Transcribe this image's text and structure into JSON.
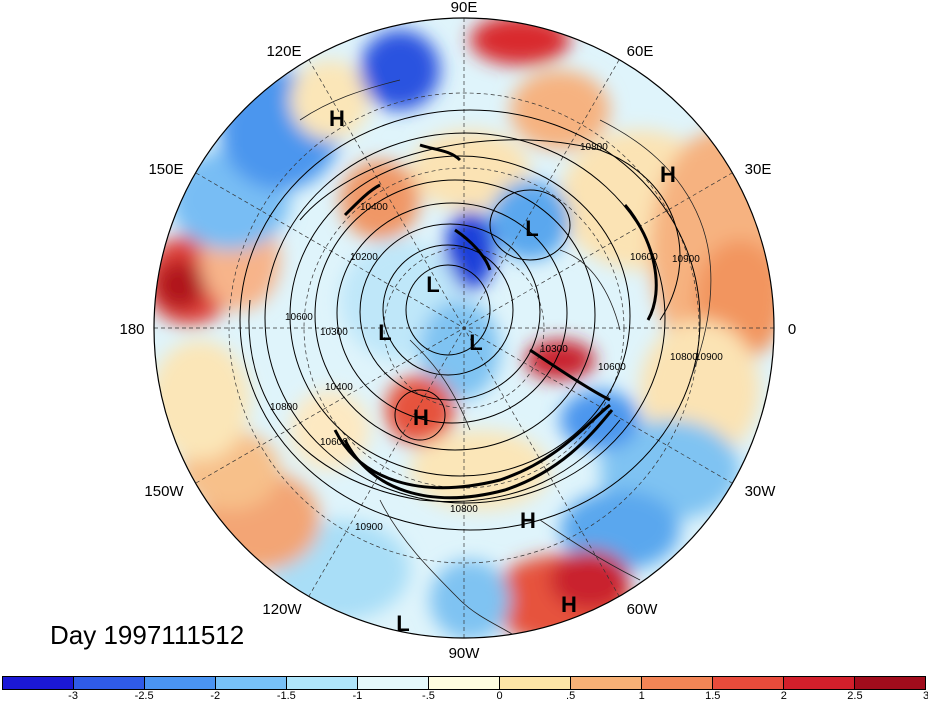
{
  "date_label": "Day 1997111512",
  "longitude_labels": {
    "top": "90E",
    "upper_left": "120E",
    "upper_right": "60E",
    "left_upper": "150E",
    "right_upper": "30E",
    "left": "180",
    "right": "0",
    "left_lower": "150W",
    "right_lower": "30W",
    "lower_left": "120W",
    "lower_right": "60W",
    "bottom": "90W"
  },
  "pressure_centers": [
    {
      "type": "H"
    },
    {
      "type": "H"
    },
    {
      "type": "H"
    },
    {
      "type": "H"
    },
    {
      "type": "H"
    },
    {
      "type": "L"
    },
    {
      "type": "L"
    },
    {
      "type": "L"
    },
    {
      "type": "L"
    },
    {
      "type": "L"
    }
  ],
  "contour_labels": [
    "10800",
    "10400",
    "10200",
    "10300",
    "10600",
    "10400",
    "10800",
    "10600",
    "10900",
    "10800",
    "10900",
    "10800",
    "10600",
    "10600",
    "10900",
    "10300"
  ],
  "colorbar": {
    "colors": [
      "#1b18d6",
      "#2f5be8",
      "#4a94f2",
      "#78c1f7",
      "#b0e6fb",
      "#e4f8fb",
      "#fefde0",
      "#fde5a6",
      "#f7b176",
      "#f28556",
      "#e84b3b",
      "#d21f2b",
      "#a10c1c"
    ],
    "tick_labels": [
      "-3",
      "-2.5",
      "-2",
      "-1.5",
      "-1",
      "-.5",
      "0",
      ".5",
      "1",
      "1.5",
      "2",
      "2.5",
      "3"
    ]
  }
}
